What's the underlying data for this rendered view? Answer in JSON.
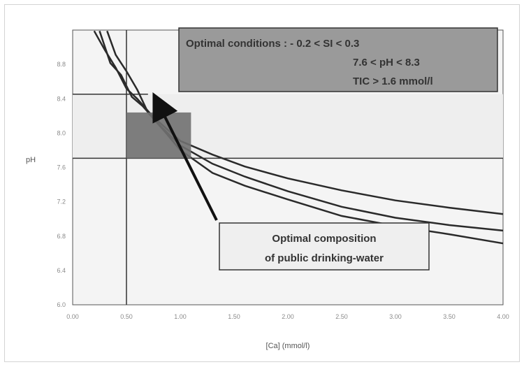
{
  "chart_data": {
    "type": "line",
    "title": "",
    "xlabel": "[Ca] (mmol/l)",
    "ylabel": "pH",
    "xlim": [
      0,
      4
    ],
    "ylim": [
      6,
      9
    ],
    "x_ticks": [
      "0.00",
      "0.50",
      "1.00",
      "1.50",
      "2.00",
      "2.50",
      "3.00",
      "3.50",
      "4.00"
    ],
    "y_ticks": [
      "6.0",
      "6.4",
      "6.8",
      "7.2",
      "7.6",
      "8.0",
      "8.4",
      "8.8"
    ],
    "grid": false,
    "series": [
      {
        "name": "",
        "x": [
          0.2,
          0.3,
          0.4,
          0.5,
          0.6,
          0.75,
          1.0,
          1.3,
          1.6,
          2.0,
          2.5,
          3.0,
          3.5,
          4.0
        ],
        "y": [
          8.99,
          8.78,
          8.59,
          8.36,
          8.25,
          8.05,
          7.79,
          7.64,
          7.51,
          7.38,
          7.25,
          7.14,
          7.06,
          6.99
        ]
      },
      {
        "name": "",
        "x": [
          0.25,
          0.35,
          0.45,
          0.55,
          0.65,
          0.8,
          1.0,
          1.3,
          1.6,
          2.0,
          2.5,
          3.0,
          3.5,
          4.0
        ],
        "y": [
          8.99,
          8.64,
          8.51,
          8.27,
          8.17,
          7.97,
          7.74,
          7.54,
          7.4,
          7.24,
          7.07,
          6.95,
          6.87,
          6.81
        ]
      },
      {
        "name": "",
        "x": [
          0.32,
          0.4,
          0.5,
          0.6,
          0.7,
          0.85,
          1.0,
          1.3,
          1.6,
          2.0,
          2.5,
          3.0,
          3.5,
          4.0
        ],
        "y": [
          8.99,
          8.73,
          8.55,
          8.35,
          8.1,
          7.9,
          7.69,
          7.44,
          7.3,
          7.15,
          6.97,
          6.86,
          6.77,
          6.67
        ]
      }
    ],
    "reference_lines": {
      "x": [
        0.5
      ],
      "y": [
        7.6,
        8.3
      ]
    },
    "optimal_region": {
      "x": [
        0.5,
        1.1
      ],
      "y": [
        7.6,
        8.1
      ]
    },
    "annotations": {
      "optimal_conditions": [
        "Optimal conditions :  - 0.2 < SI < 0.3",
        "7.6 < pH  <  8.3",
        "TIC > 1.6 mmol/l"
      ],
      "optimal_composition": [
        "Optimal composition",
        "of public drinking-water"
      ]
    },
    "colors": {
      "curve": "#2a2a2a",
      "band": "#eeeeee",
      "box_fill": "#9a9a9a",
      "region_fill": "#707070",
      "plot_bg": "#f4f4f4",
      "composition_box": "#efefef"
    }
  }
}
